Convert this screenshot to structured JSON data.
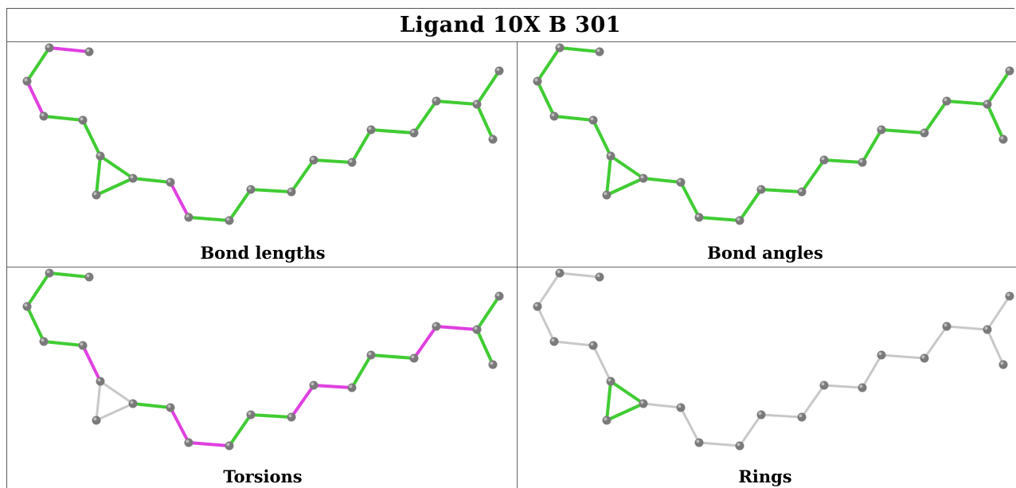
{
  "title": "Ligand 10X B 301",
  "colors": {
    "pass": "#40cc33",
    "outlier": "#e040e0",
    "na": "#c8c8c8",
    "atom": "#7a7a7a",
    "atom_highlight": "#bdbdbd"
  },
  "panels": [
    {
      "caption": "Bond lengths",
      "bond_status": [
        "outlier",
        "pass",
        "outlier",
        "pass",
        "pass",
        "pass",
        "pass",
        "pass",
        "pass",
        "outlier",
        "pass",
        "pass",
        "pass",
        "pass",
        "pass",
        "pass",
        "pass",
        "pass",
        "pass",
        "pass",
        "pass",
        "pass"
      ]
    },
    {
      "caption": "Bond angles",
      "bond_status": [
        "pass",
        "pass",
        "pass",
        "pass",
        "pass",
        "pass",
        "pass",
        "pass",
        "pass",
        "pass",
        "pass",
        "pass",
        "pass",
        "pass",
        "pass",
        "pass",
        "pass",
        "pass",
        "pass",
        "pass",
        "pass",
        "pass"
      ]
    },
    {
      "caption": "Torsions",
      "bond_status": [
        "pass",
        "pass",
        "pass",
        "pass",
        "outlier",
        "na",
        "na",
        "na",
        "pass",
        "outlier",
        "outlier",
        "pass",
        "pass",
        "outlier",
        "outlier",
        "pass",
        "pass",
        "outlier",
        "outlier",
        "pass",
        "pass",
        "pass"
      ]
    },
    {
      "caption": "Rings",
      "bond_status": [
        "na",
        "na",
        "na",
        "na",
        "na",
        "pass",
        "pass",
        "pass",
        "na",
        "na",
        "na",
        "na",
        "na",
        "na",
        "na",
        "na",
        "na",
        "na",
        "na",
        "na",
        "na",
        "na"
      ]
    }
  ]
}
